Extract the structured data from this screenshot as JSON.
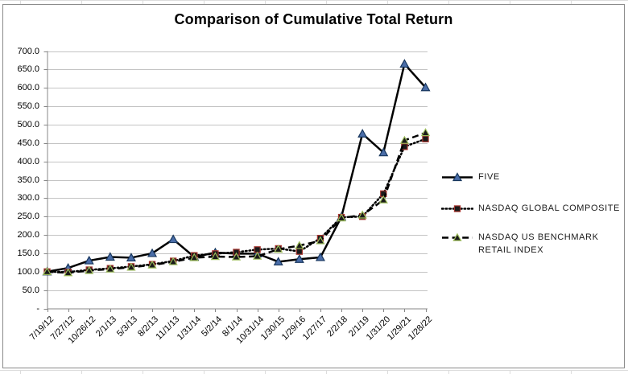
{
  "chart_data": {
    "type": "line",
    "title": "Comparison of Cumulative Total Return",
    "categories": [
      "7/19/12",
      "7/27/12",
      "10/26/12",
      "2/1/13",
      "5/3/13",
      "8/2/13",
      "11/1/13",
      "1/31/14",
      "5/2/14",
      "8/1/14",
      "10/31/14",
      "1/30/15",
      "1/29/16",
      "1/27/17",
      "2/2/18",
      "2/1/19",
      "1/31/20",
      "1/29/21",
      "1/28/22"
    ],
    "series": [
      {
        "name": "FIVE",
        "line_style": "solid",
        "line_color": "#000000",
        "marker": "triangle",
        "marker_fill": "#4a6da8",
        "marker_border": "#17365d",
        "values": [
          100.0,
          110.0,
          130.0,
          140.0,
          138.0,
          150.0,
          188.0,
          140.0,
          152.0,
          149.0,
          149.0,
          127.0,
          134.0,
          139.0,
          249.0,
          475.0,
          424.0,
          665.0,
          601.0
        ]
      },
      {
        "name": "NASDAQ GLOBAL COMPOSITE",
        "line_style": "dotted",
        "line_color": "#000000",
        "marker": "square",
        "marker_fill": "#1a1a1a",
        "marker_border": "#a5352f",
        "values": [
          100.0,
          99.0,
          105.0,
          109.0,
          114.0,
          120.0,
          129.0,
          144.0,
          149.0,
          153.0,
          160.0,
          163.0,
          155.0,
          191.0,
          248.0,
          250.0,
          312.0,
          440.0,
          461.0
        ]
      },
      {
        "name": "NASDAQ US BENCHMARK RETAIL INDEX",
        "line_style": "dashed",
        "line_color": "#000000",
        "marker": "triangle",
        "marker_fill": "#1a1a1a",
        "marker_border": "#9bbb59",
        "values": [
          100.0,
          97.0,
          103.0,
          107.0,
          112.0,
          118.0,
          127.0,
          138.0,
          141.0,
          140.0,
          142.0,
          161.0,
          171.0,
          184.0,
          246.0,
          254.0,
          295.0,
          457.0,
          478.0
        ]
      }
    ],
    "ylim": [
      0,
      700
    ],
    "ytick_interval": 50,
    "ytick_values": [
      0,
      50,
      100,
      150,
      200,
      250,
      300,
      350,
      400,
      450,
      500,
      550,
      600,
      650,
      700
    ],
    "ytick_labels": [
      "-",
      "50.0",
      "100.0",
      "150.0",
      "200.0",
      "250.0",
      "300.0",
      "350.0",
      "400.0",
      "450.0",
      "500.0",
      "550.0",
      "600.0",
      "650.0",
      "700.0"
    ],
    "xlabel": "",
    "ylabel": "",
    "grid": "horizontal",
    "gridline_color": "#c4c4c4",
    "axis_color": "#878787",
    "legend_position": "right"
  }
}
